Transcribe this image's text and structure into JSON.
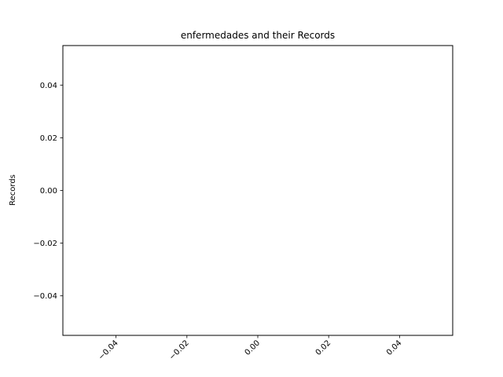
{
  "chart_data": {
    "type": "bar",
    "title": "enfermedades and their Records",
    "xlabel": "",
    "ylabel": "Records",
    "categories": [],
    "values": [],
    "xlim": [
      -0.055,
      0.055
    ],
    "ylim": [
      -0.055,
      0.055
    ],
    "xticks": [
      -0.04,
      -0.02,
      0.0,
      0.02,
      0.04
    ],
    "xtick_labels": [
      "−0.04",
      "−0.02",
      "0.00",
      "0.02",
      "0.04"
    ],
    "yticks": [
      0.04,
      0.02,
      0.0,
      -0.02,
      -0.04
    ],
    "ytick_labels": [
      "0.04",
      "0.02",
      "0.00",
      "−0.02",
      "−0.04"
    ],
    "grid": false,
    "legend": "none"
  }
}
